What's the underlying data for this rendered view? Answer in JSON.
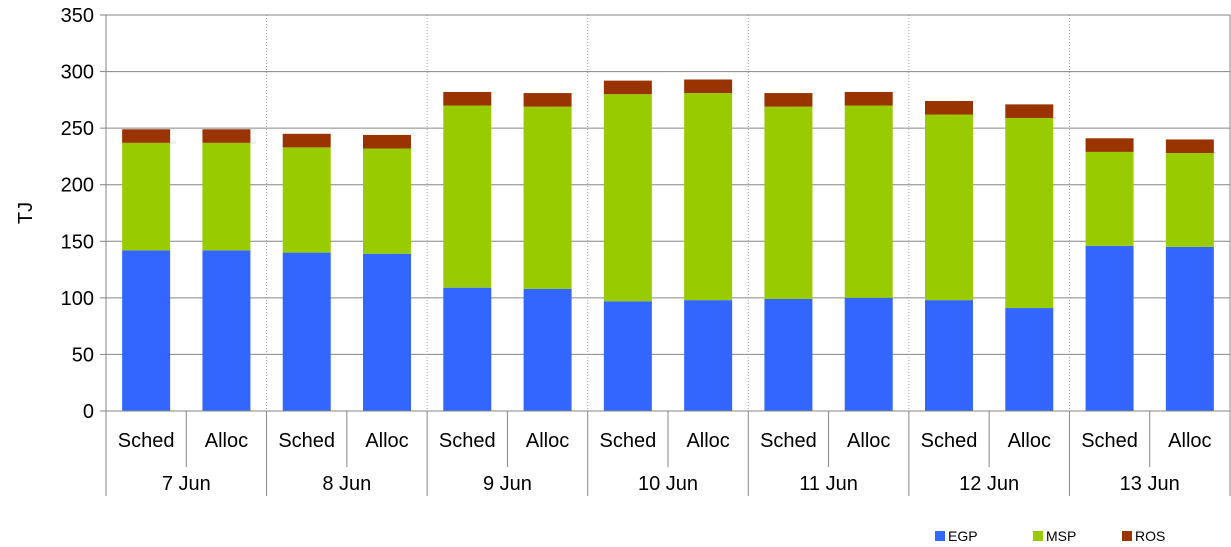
{
  "chart_data": {
    "type": "bar",
    "stacked": true,
    "ylabel": "TJ",
    "ylim": [
      0,
      350
    ],
    "yticks": [
      0,
      50,
      100,
      150,
      200,
      250,
      300,
      350
    ],
    "grid": "horizontal solid, vertical dotted between groups",
    "legend_position": "bottom-right",
    "groups": [
      "7 Jun",
      "8 Jun",
      "9 Jun",
      "10 Jun",
      "11 Jun",
      "12 Jun",
      "13 Jun"
    ],
    "subcategories": [
      "Sched",
      "Alloc"
    ],
    "categories": [
      "7 Jun Sched",
      "7 Jun Alloc",
      "8 Jun Sched",
      "8 Jun Alloc",
      "9 Jun Sched",
      "9 Jun Alloc",
      "10 Jun Sched",
      "10 Jun Alloc",
      "11 Jun Sched",
      "11 Jun Alloc",
      "12 Jun Sched",
      "12 Jun Alloc",
      "13 Jun Sched",
      "13 Jun Alloc"
    ],
    "series": [
      {
        "name": "EGP",
        "color": "#3366FF",
        "values": [
          142,
          142,
          140,
          139,
          109,
          108,
          97,
          98,
          99,
          100,
          98,
          91,
          146,
          145
        ]
      },
      {
        "name": "MSP",
        "color": "#99CC00",
        "values": [
          95,
          95,
          93,
          93,
          161,
          161,
          183,
          183,
          170,
          170,
          164,
          168,
          83,
          83
        ]
      },
      {
        "name": "ROS",
        "color": "#993300",
        "values": [
          12,
          12,
          12,
          12,
          12,
          12,
          12,
          12,
          12,
          12,
          12,
          12,
          12,
          12
        ]
      }
    ]
  }
}
